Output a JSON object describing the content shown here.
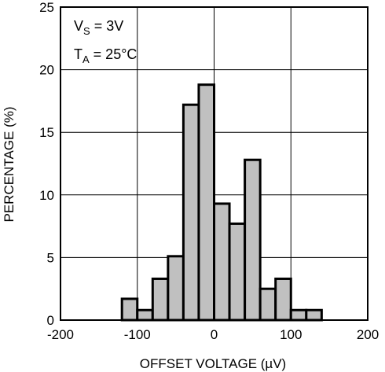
{
  "chart_data": {
    "type": "bar",
    "xlabel": "OFFSET VOLTAGE (µV)",
    "ylabel": "PERCENTAGE (%)",
    "xlim": [
      -200,
      200
    ],
    "ylim": [
      0,
      25
    ],
    "xticks": [
      -200,
      -100,
      0,
      100,
      200
    ],
    "yticks": [
      0,
      5,
      10,
      15,
      20,
      25
    ],
    "grid": true,
    "bin_width": 20,
    "bins": [
      {
        "x0": -120,
        "x1": -100,
        "value": 1.7
      },
      {
        "x0": -100,
        "x1": -80,
        "value": 0.8
      },
      {
        "x0": -80,
        "x1": -60,
        "value": 3.3
      },
      {
        "x0": -60,
        "x1": -40,
        "value": 5.1
      },
      {
        "x0": -40,
        "x1": -20,
        "value": 17.2
      },
      {
        "x0": -20,
        "x1": 0,
        "value": 18.8
      },
      {
        "x0": 0,
        "x1": 20,
        "value": 9.3
      },
      {
        "x0": 20,
        "x1": 40,
        "value": 7.7
      },
      {
        "x0": 40,
        "x1": 60,
        "value": 12.8
      },
      {
        "x0": 60,
        "x1": 80,
        "value": 2.5
      },
      {
        "x0": 80,
        "x1": 100,
        "value": 3.3
      },
      {
        "x0": 100,
        "x1": 120,
        "value": 0.8
      },
      {
        "x0": 120,
        "x1": 140,
        "value": 0.8
      }
    ],
    "bar_color": "#c0c0c0",
    "annotations": [
      {
        "name": "supply",
        "main": "V",
        "sub": "S",
        "rest": " = 3V"
      },
      {
        "name": "temperature",
        "main": "T",
        "sub": "A",
        "rest": " = 25°C"
      }
    ]
  }
}
